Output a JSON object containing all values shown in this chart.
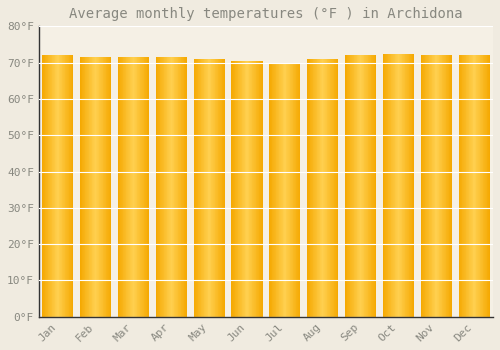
{
  "title": "Average monthly temperatures (°F ) in Archidona",
  "months": [
    "Jan",
    "Feb",
    "Mar",
    "Apr",
    "May",
    "Jun",
    "Jul",
    "Aug",
    "Sep",
    "Oct",
    "Nov",
    "Dec"
  ],
  "values": [
    72.0,
    71.5,
    71.5,
    71.5,
    71.0,
    70.5,
    70.0,
    71.0,
    72.0,
    72.5,
    72.0,
    72.0
  ],
  "bar_color_edge": "#F5A800",
  "bar_color_center": "#FFD060",
  "background_color": "#F0EBE0",
  "plot_background": "#F5F0E5",
  "grid_color": "#FFFFFF",
  "text_color": "#888880",
  "spine_color": "#333333",
  "ylim": [
    0,
    80
  ],
  "yticks": [
    0,
    10,
    20,
    30,
    40,
    50,
    60,
    70,
    80
  ],
  "title_fontsize": 10,
  "tick_fontsize": 8
}
